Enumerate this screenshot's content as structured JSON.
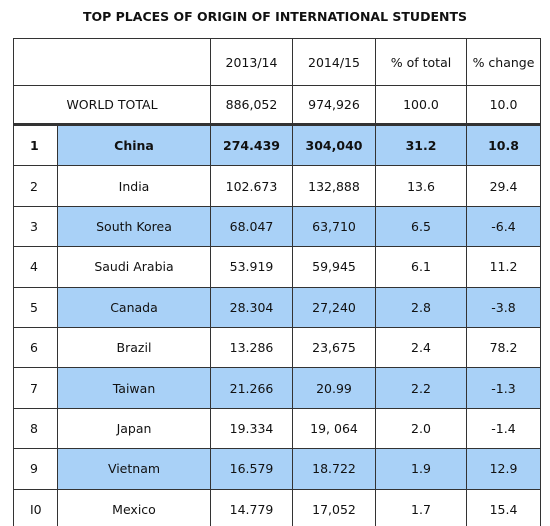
{
  "title": "TOP PLACES OF ORIGIN OF INTERNATIONAL STUDENTS",
  "table": {
    "header": [
      "2013/14",
      "2014/15",
      "% of total",
      "% change"
    ],
    "total": [
      "WORLD TOTAL",
      "886,052",
      "974,926",
      "100.0",
      "10.0"
    ],
    "rows": [
      [
        "1",
        "China",
        "274.439",
        "304,040",
        "31.2",
        "10.8"
      ],
      [
        "2",
        "India",
        "102.673",
        "132,888",
        "13.6",
        "29.4"
      ],
      [
        "3",
        "South Korea",
        "68.047",
        "63,710",
        "6.5",
        "-6.4"
      ],
      [
        "4",
        "Saudi Arabia",
        "53.919",
        "59,945",
        "6.1",
        "11.2"
      ],
      [
        "5",
        "Canada",
        "28.304",
        "27,240",
        "2.8",
        "-3.8"
      ],
      [
        "6",
        "Brazil",
        "13.286",
        "23,675",
        "2.4",
        "78.2"
      ],
      [
        "7",
        "Taiwan",
        "21.266",
        "20.99",
        "2.2",
        "-1.3"
      ],
      [
        "8",
        "Japan",
        "19.334",
        "19, 064",
        "2.0",
        "-1.4"
      ],
      [
        "9",
        "Vietnam",
        "16.579",
        "18.722",
        "1.9",
        "12.9"
      ],
      [
        "I0",
        "Mexico",
        "14.779",
        "17,052",
        "1.7",
        "15.4"
      ]
    ]
  }
}
